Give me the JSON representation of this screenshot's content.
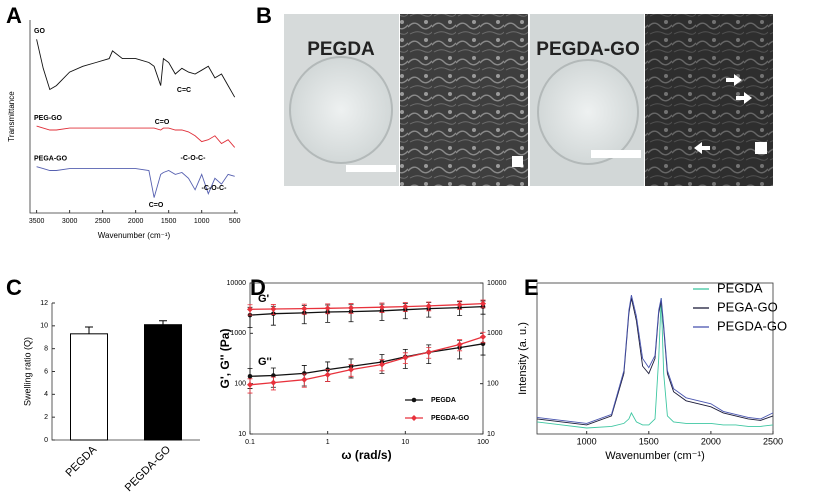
{
  "figure": {
    "panel_labels": [
      "A",
      "B",
      "C",
      "D",
      "E"
    ],
    "photo_labels": [
      "PEGDA",
      "PEGDA-GO"
    ]
  },
  "chart_data": [
    {
      "type": "line",
      "y_label": "Transmittance",
      "x_label": "Wavenumber (cm⁻¹)",
      "x": [
        3500,
        3400,
        3300,
        3200,
        3000,
        2800,
        2600,
        2400,
        2350,
        2200,
        2000,
        1800,
        1720,
        1620,
        1580,
        1500,
        1400,
        1300,
        1200,
        1100,
        1000,
        900,
        800,
        700,
        600,
        500
      ],
      "xlim": [
        3600,
        450
      ],
      "xticks": [
        3500,
        3000,
        2500,
        2000,
        1500,
        1000,
        500
      ],
      "ylim": [
        0,
        100
      ],
      "legend": "inline",
      "frame": "axes",
      "series": [
        {
          "name": "GO",
          "color": "#111111",
          "values": [
            90,
            75,
            64,
            66,
            73,
            76,
            78,
            80,
            84,
            80,
            80,
            78,
            76,
            66,
            80,
            78,
            72,
            75,
            73,
            72,
            74,
            76,
            70,
            72,
            66,
            60
          ]
        },
        {
          "name": "PEG-GO",
          "color": "#e0303a",
          "values": [
            45,
            44,
            43,
            43,
            44,
            44,
            44,
            44,
            44,
            44,
            44,
            44,
            44,
            43,
            44,
            44,
            43,
            43,
            42,
            40,
            37,
            38,
            40,
            36,
            38,
            34
          ]
        },
        {
          "name": "PEGA-GO",
          "color": "#5660b0",
          "values": [
            24,
            23,
            22,
            22,
            23,
            23,
            23,
            23,
            23,
            23,
            23,
            22,
            8,
            20,
            21,
            22,
            20,
            21,
            18,
            12,
            20,
            10,
            18,
            15,
            20,
            19
          ]
        }
      ],
      "annotations": [
        "C=O",
        "C=C",
        "-C-O-C-",
        "-C-O-C-",
        "C=O"
      ]
    },
    {
      "type": "bar",
      "y_label": "Swelling ratio (Q)",
      "categories": [
        "PEGDA",
        "PEGDA-GO"
      ],
      "values": [
        9.3,
        10.1
      ],
      "errors": [
        0.6,
        0.35
      ],
      "colors": [
        "#ffffff",
        "#000000"
      ],
      "ylim": [
        0,
        12
      ],
      "yticks": [
        0,
        2,
        4,
        6,
        8,
        10,
        12
      ],
      "frame": "axes"
    },
    {
      "type": "line",
      "x_label": "ω (rad/s)",
      "y_label": "G', G'' (Pa)",
      "xlog": true,
      "ylog": true,
      "x": [
        0.1,
        0.2,
        0.5,
        1,
        2,
        5,
        10,
        20,
        50,
        100
      ],
      "xlim": [
        0.1,
        100
      ],
      "xticks": [
        0.1,
        1,
        10,
        100
      ],
      "ylim": [
        10,
        10000
      ],
      "yticks": [
        10,
        100,
        1000,
        10000
      ],
      "y2lim": [
        10,
        10000
      ],
      "y2ticks": [
        10,
        100,
        1000,
        10000
      ],
      "legend": "lower right",
      "frame": "box",
      "series": [
        {
          "name": "PEGDA",
          "color": "#111111",
          "marker": "circle",
          "values": [
            2300,
            2450,
            2550,
            2650,
            2700,
            2800,
            2950,
            3100,
            3250,
            3400
          ],
          "errors": [
            1000,
            1000,
            1000,
            1000,
            1000,
            1000,
            1000,
            1000,
            1000,
            1000
          ],
          "loss_values": [
            140,
            145,
            160,
            190,
            220,
            270,
            340,
            420,
            520,
            620
          ],
          "loss_errors": [
            60,
            60,
            70,
            80,
            90,
            110,
            140,
            170,
            210,
            250
          ]
        },
        {
          "name": "PEGDA-GO",
          "color": "#e8323c",
          "marker": "diamond",
          "values": [
            3000,
            3050,
            3100,
            3150,
            3200,
            3300,
            3400,
            3500,
            3700,
            3900
          ],
          "errors": [
            700,
            700,
            700,
            700,
            700,
            700,
            700,
            700,
            700,
            700
          ],
          "loss_values": [
            95,
            105,
            120,
            150,
            190,
            240,
            330,
            420,
            600,
            850
          ],
          "loss_errors": [
            30,
            30,
            35,
            40,
            50,
            60,
            80,
            100,
            150,
            200
          ]
        }
      ],
      "annotations": [
        "G'",
        "G''"
      ]
    },
    {
      "type": "line",
      "x_label": "Wavenumber (cm⁻¹)",
      "y_label": "Intensity (a. u.)",
      "x": [
        600,
        800,
        1000,
        1200,
        1300,
        1340,
        1360,
        1400,
        1450,
        1500,
        1550,
        1580,
        1600,
        1620,
        1650,
        1700,
        1800,
        1900,
        2000,
        2100,
        2200,
        2300,
        2400,
        2500
      ],
      "xlim": [
        600,
        2500
      ],
      "xticks": [
        1000,
        1500,
        2000,
        2500
      ],
      "ylim": [
        0,
        100
      ],
      "legend": "upper right",
      "frame": "box",
      "series": [
        {
          "name": "PEGDA",
          "color": "#3fc7a2",
          "values": [
            8,
            6,
            4,
            5,
            7,
            10,
            14,
            8,
            6,
            6,
            10,
            50,
            90,
            40,
            12,
            8,
            7,
            7,
            7,
            6,
            6,
            5,
            5,
            6
          ]
        },
        {
          "name": "PEGA-GO",
          "color": "#1c1c3a",
          "values": [
            10,
            8,
            6,
            12,
            40,
            80,
            90,
            75,
            45,
            40,
            50,
            80,
            88,
            70,
            40,
            28,
            22,
            20,
            18,
            14,
            12,
            10,
            9,
            12
          ]
        },
        {
          "name": "PEGDA-GO",
          "color": "#4a56b0",
          "values": [
            11,
            9,
            7,
            13,
            42,
            82,
            92,
            78,
            50,
            44,
            52,
            82,
            90,
            72,
            42,
            30,
            24,
            22,
            20,
            15,
            13,
            11,
            10,
            14
          ]
        }
      ]
    }
  ]
}
